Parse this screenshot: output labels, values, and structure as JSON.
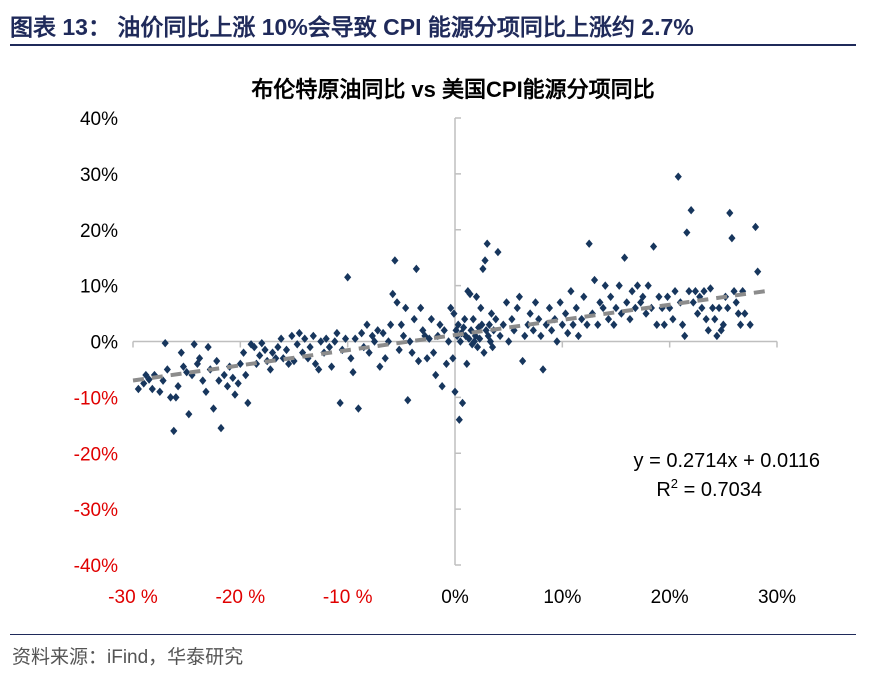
{
  "header": {
    "title": "图表 13：   油价同比上涨 10%会导致 CPI 能源分项同比上涨约 2.7%"
  },
  "footer": {
    "source": "资料来源：iFind，华泰研究"
  },
  "colors": {
    "brand": "#1f2a5a",
    "point": "#17365d",
    "trend": "#8c8c8c",
    "negative": "#e00000",
    "axis": "#bfbfbf"
  },
  "chart_data": {
    "type": "scatter",
    "title": "布伦特原油同比 vs 美国CPI能源分项同比",
    "xlabel": "",
    "ylabel": "",
    "xlim": [
      -0.3,
      0.3
    ],
    "ylim": [
      -0.4,
      0.4
    ],
    "x_ticks": [
      "-30 %",
      "-20 %",
      "-10 %",
      "0%",
      "10%",
      "20%",
      "30%"
    ],
    "y_ticks": [
      "40%",
      "30%",
      "20%",
      "10%",
      "0%",
      "-10%",
      "-20%",
      "-30%",
      "-40%"
    ],
    "trendline": {
      "slope": 0.2714,
      "intercept": 0.0116,
      "style": "dashed"
    },
    "annotation": {
      "equation": "y = 0.2714x + 0.0116",
      "r2_label": "R",
      "r2_sup": "2",
      "r2_value": " = 0.7034"
    },
    "points": [
      [
        -0.295,
        -0.085
      ],
      [
        -0.29,
        -0.075
      ],
      [
        -0.288,
        -0.06
      ],
      [
        -0.285,
        -0.068
      ],
      [
        -0.282,
        -0.085
      ],
      [
        -0.28,
        -0.06
      ],
      [
        -0.275,
        -0.09
      ],
      [
        -0.272,
        -0.07
      ],
      [
        -0.27,
        -0.003
      ],
      [
        -0.268,
        -0.05
      ],
      [
        -0.265,
        -0.1
      ],
      [
        -0.262,
        -0.16
      ],
      [
        -0.26,
        -0.1
      ],
      [
        -0.258,
        -0.08
      ],
      [
        -0.255,
        -0.02
      ],
      [
        -0.253,
        -0.045
      ],
      [
        -0.25,
        -0.055
      ],
      [
        -0.248,
        -0.13
      ],
      [
        -0.245,
        -0.06
      ],
      [
        -0.243,
        -0.005
      ],
      [
        -0.24,
        -0.04
      ],
      [
        -0.238,
        -0.03
      ],
      [
        -0.235,
        -0.07
      ],
      [
        -0.232,
        -0.09
      ],
      [
        -0.23,
        -0.01
      ],
      [
        -0.228,
        -0.05
      ],
      [
        -0.225,
        -0.12
      ],
      [
        -0.222,
        -0.035
      ],
      [
        -0.22,
        -0.07
      ],
      [
        -0.218,
        -0.155
      ],
      [
        -0.215,
        -0.06
      ],
      [
        -0.212,
        -0.08
      ],
      [
        -0.21,
        -0.045
      ],
      [
        -0.207,
        -0.065
      ],
      [
        -0.205,
        -0.095
      ],
      [
        -0.202,
        -0.075
      ],
      [
        -0.2,
        -0.04
      ],
      [
        -0.197,
        -0.02
      ],
      [
        -0.195,
        -0.06
      ],
      [
        -0.193,
        -0.11
      ],
      [
        -0.19,
        -0.005
      ],
      [
        -0.187,
        -0.01
      ],
      [
        -0.185,
        -0.04
      ],
      [
        -0.182,
        -0.025
      ],
      [
        -0.18,
        -0.003
      ],
      [
        -0.177,
        -0.015
      ],
      [
        -0.175,
        -0.035
      ],
      [
        -0.172,
        -0.05
      ],
      [
        -0.17,
        -0.02
      ],
      [
        -0.167,
        -0.03
      ],
      [
        -0.165,
        -0.01
      ],
      [
        -0.162,
        0.005
      ],
      [
        -0.16,
        -0.03
      ],
      [
        -0.157,
        -0.015
      ],
      [
        -0.155,
        -0.04
      ],
      [
        -0.152,
        0.01
      ],
      [
        -0.15,
        -0.035
      ],
      [
        -0.147,
        -0.005
      ],
      [
        -0.145,
        0.015
      ],
      [
        -0.142,
        -0.02
      ],
      [
        -0.14,
        0.005
      ],
      [
        -0.137,
        -0.03
      ],
      [
        -0.135,
        -0.01
      ],
      [
        -0.132,
        0.01
      ],
      [
        -0.13,
        -0.04
      ],
      [
        -0.127,
        -0.05
      ],
      [
        -0.125,
        0.0
      ],
      [
        -0.122,
        -0.02
      ],
      [
        -0.12,
        0.005
      ],
      [
        -0.117,
        -0.01
      ],
      [
        -0.115,
        -0.045
      ],
      [
        -0.112,
        0.0
      ],
      [
        -0.11,
        0.015
      ],
      [
        -0.107,
        -0.11
      ],
      [
        -0.105,
        -0.015
      ],
      [
        -0.102,
        0.005
      ],
      [
        -0.1,
        0.115
      ],
      [
        -0.097,
        -0.03
      ],
      [
        -0.095,
        -0.055
      ],
      [
        -0.093,
        0.005
      ],
      [
        -0.09,
        -0.12
      ],
      [
        -0.087,
        0.015
      ],
      [
        -0.085,
        -0.01
      ],
      [
        -0.082,
        0.03
      ],
      [
        -0.08,
        -0.02
      ],
      [
        -0.077,
        0.01
      ],
      [
        -0.075,
        0.0
      ],
      [
        -0.072,
        0.02
      ],
      [
        -0.07,
        -0.045
      ],
      [
        -0.067,
        0.015
      ],
      [
        -0.065,
        -0.03
      ],
      [
        -0.062,
        0.0
      ],
      [
        -0.06,
        0.03
      ],
      [
        -0.058,
        0.085
      ],
      [
        -0.056,
        0.145
      ],
      [
        -0.054,
        0.07
      ],
      [
        -0.052,
        -0.015
      ],
      [
        -0.05,
        0.03
      ],
      [
        -0.048,
        0.01
      ],
      [
        -0.046,
        0.06
      ],
      [
        -0.044,
        -0.105
      ],
      [
        -0.042,
        0.0
      ],
      [
        -0.04,
        -0.02
      ],
      [
        -0.038,
        0.04
      ],
      [
        -0.036,
        0.13
      ],
      [
        -0.034,
        -0.035
      ],
      [
        -0.032,
        0.06
      ],
      [
        -0.03,
        0.02
      ],
      [
        -0.028,
        0.01
      ],
      [
        -0.026,
        -0.03
      ],
      [
        -0.024,
        0.005
      ],
      [
        -0.022,
        0.04
      ],
      [
        -0.02,
        -0.02
      ],
      [
        -0.018,
        -0.06
      ],
      [
        -0.016,
        0.01
      ],
      [
        -0.014,
        0.03
      ],
      [
        -0.012,
        -0.08
      ],
      [
        -0.01,
        0.02
      ],
      [
        -0.008,
        -0.04
      ],
      [
        -0.006,
        0.0
      ],
      [
        -0.004,
        0.06
      ],
      [
        -0.002,
        -0.03
      ],
      [
        -0.001,
        0.05
      ],
      [
        0.0,
        -0.09
      ],
      [
        0.001,
        0.02
      ],
      [
        0.002,
        0.01
      ],
      [
        0.003,
        0.03
      ],
      [
        0.004,
        -0.14
      ],
      [
        0.005,
        0.0
      ],
      [
        0.006,
        0.015
      ],
      [
        0.007,
        -0.11
      ],
      [
        0.008,
        0.025
      ],
      [
        0.009,
        0.04
      ],
      [
        0.01,
        0.01
      ],
      [
        0.011,
        -0.04
      ],
      [
        0.012,
        0.09
      ],
      [
        0.013,
        0.005
      ],
      [
        0.014,
        0.085
      ],
      [
        0.015,
        0.02
      ],
      [
        0.016,
        -0.005
      ],
      [
        0.017,
        0.04
      ],
      [
        0.018,
        0.0
      ],
      [
        0.019,
        0.01
      ],
      [
        0.02,
        0.08
      ],
      [
        0.021,
        -0.01
      ],
      [
        0.022,
        0.025
      ],
      [
        0.023,
        0.005
      ],
      [
        0.024,
        0.06
      ],
      [
        0.025,
        0.03
      ],
      [
        0.026,
        0.13
      ],
      [
        0.027,
        -0.02
      ],
      [
        0.028,
        0.145
      ],
      [
        0.029,
        0.02
      ],
      [
        0.03,
        0.175
      ],
      [
        0.031,
        0.01
      ],
      [
        0.032,
        0.03
      ],
      [
        0.033,
        0.0
      ],
      [
        0.034,
        0.05
      ],
      [
        0.035,
        -0.01
      ],
      [
        0.036,
        0.02
      ],
      [
        0.038,
        0.04
      ],
      [
        0.04,
        0.16
      ],
      [
        0.042,
        0.01
      ],
      [
        0.045,
        0.03
      ],
      [
        0.048,
        0.07
      ],
      [
        0.05,
        0.0
      ],
      [
        0.053,
        0.04
      ],
      [
        0.055,
        0.02
      ],
      [
        0.058,
        0.06
      ],
      [
        0.06,
        0.08
      ],
      [
        0.063,
        -0.035
      ],
      [
        0.065,
        0.01
      ],
      [
        0.068,
        0.03
      ],
      [
        0.07,
        0.05
      ],
      [
        0.073,
        0.02
      ],
      [
        0.075,
        0.07
      ],
      [
        0.078,
        0.04
      ],
      [
        0.08,
        0.01
      ],
      [
        0.082,
        -0.05
      ],
      [
        0.085,
        0.03
      ],
      [
        0.088,
        0.06
      ],
      [
        0.09,
        0.02
      ],
      [
        0.093,
        0.04
      ],
      [
        0.095,
        0.0
      ],
      [
        0.098,
        0.07
      ],
      [
        0.1,
        0.03
      ],
      [
        0.103,
        0.05
      ],
      [
        0.105,
        0.015
      ],
      [
        0.108,
        0.09
      ],
      [
        0.11,
        0.03
      ],
      [
        0.113,
        0.06
      ],
      [
        0.115,
        0.01
      ],
      [
        0.118,
        0.04
      ],
      [
        0.12,
        0.08
      ],
      [
        0.123,
        0.03
      ],
      [
        0.125,
        0.175
      ],
      [
        0.128,
        0.05
      ],
      [
        0.13,
        0.11
      ],
      [
        0.133,
        0.03
      ],
      [
        0.135,
        0.07
      ],
      [
        0.138,
        0.06
      ],
      [
        0.14,
        0.1
      ],
      [
        0.143,
        0.04
      ],
      [
        0.145,
        0.08
      ],
      [
        0.148,
        0.03
      ],
      [
        0.15,
        0.06
      ],
      [
        0.153,
        0.1
      ],
      [
        0.155,
        0.05
      ],
      [
        0.158,
        0.15
      ],
      [
        0.16,
        0.07
      ],
      [
        0.163,
        0.04
      ],
      [
        0.165,
        0.09
      ],
      [
        0.168,
        0.06
      ],
      [
        0.17,
        0.1
      ],
      [
        0.173,
        0.07
      ],
      [
        0.175,
        0.08
      ],
      [
        0.178,
        0.05
      ],
      [
        0.18,
        0.1
      ],
      [
        0.183,
        0.06
      ],
      [
        0.185,
        0.17
      ],
      [
        0.188,
        0.03
      ],
      [
        0.19,
        0.08
      ],
      [
        0.193,
        0.06
      ],
      [
        0.195,
        0.03
      ],
      [
        0.198,
        0.08
      ],
      [
        0.2,
        0.06
      ],
      [
        0.203,
        0.04
      ],
      [
        0.205,
        0.09
      ],
      [
        0.208,
        0.295
      ],
      [
        0.21,
        0.07
      ],
      [
        0.212,
        0.03
      ],
      [
        0.214,
        0.01
      ],
      [
        0.216,
        0.195
      ],
      [
        0.218,
        0.09
      ],
      [
        0.22,
        0.235
      ],
      [
        0.222,
        0.07
      ],
      [
        0.224,
        0.09
      ],
      [
        0.226,
        0.05
      ],
      [
        0.228,
        0.08
      ],
      [
        0.23,
        0.06
      ],
      [
        0.232,
        0.09
      ],
      [
        0.234,
        0.04
      ],
      [
        0.236,
        0.02
      ],
      [
        0.238,
        0.095
      ],
      [
        0.24,
        0.06
      ],
      [
        0.242,
        0.04
      ],
      [
        0.244,
        0.01
      ],
      [
        0.246,
        0.06
      ],
      [
        0.248,
        0.02
      ],
      [
        0.25,
        0.03
      ],
      [
        0.252,
        0.08
      ],
      [
        0.254,
        0.06
      ],
      [
        0.256,
        0.23
      ],
      [
        0.258,
        0.185
      ],
      [
        0.26,
        0.09
      ],
      [
        0.262,
        0.07
      ],
      [
        0.264,
        0.05
      ],
      [
        0.266,
        0.03
      ],
      [
        0.268,
        0.09
      ],
      [
        0.27,
        0.05
      ],
      [
        0.275,
        0.03
      ],
      [
        0.28,
        0.205
      ],
      [
        0.282,
        0.125
      ]
    ]
  }
}
